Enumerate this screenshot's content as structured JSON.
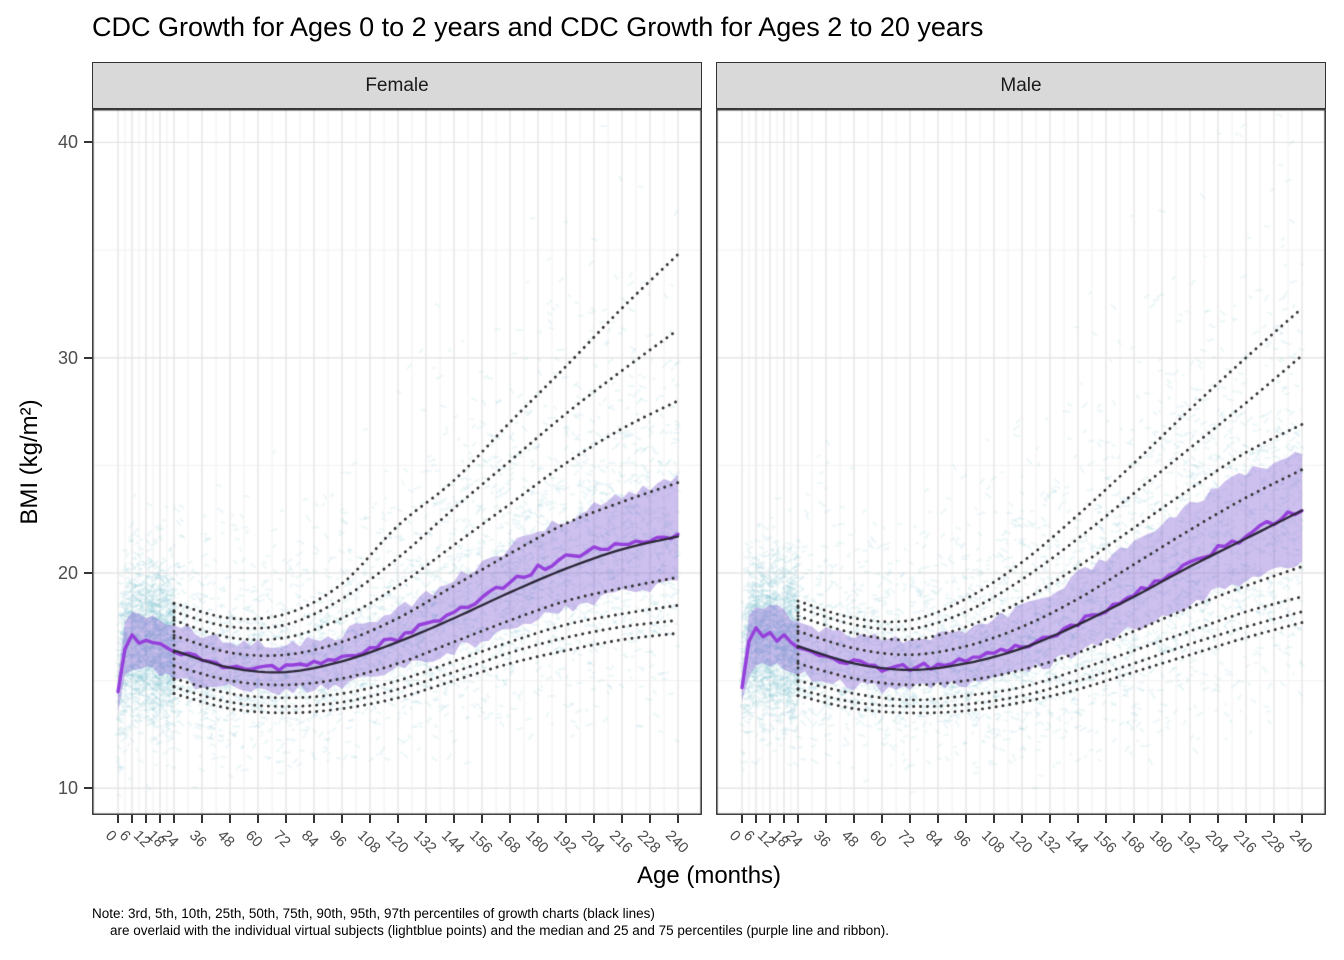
{
  "title": "CDC Growth for Ages 0 to 2 years and CDC Growth for Ages 2 to 20 years",
  "axes": {
    "x_label": "Age (months)",
    "y_label": "BMI (kg/m²)",
    "x_ticks": [
      0,
      6,
      12,
      18,
      24,
      36,
      48,
      60,
      72,
      84,
      96,
      108,
      120,
      132,
      144,
      156,
      168,
      180,
      192,
      204,
      216,
      228,
      240
    ],
    "x_minor": [
      3,
      9,
      15,
      21,
      30,
      42,
      54,
      66,
      78,
      90,
      102,
      114,
      126,
      138,
      150,
      162,
      174,
      186,
      198,
      210,
      222,
      234
    ],
    "y_ticks": [
      40,
      30,
      20,
      10
    ],
    "y_minor": [
      35,
      25,
      15
    ],
    "x_range": [
      0,
      240
    ],
    "y_range": [
      8.76,
      41.55
    ]
  },
  "note": {
    "line1": "Note: 3rd, 5th, 10th, 25th, 50th, 75th, 90th, 95th, 97th percentiles of growth charts (black lines)",
    "line2": "are overlaid with the individual virtual subjects (lightblue points) and the median and 25 and 75 percentiles (purple line and ribbon)."
  },
  "colors": {
    "cloud": "#7FC4D8",
    "ribbon_fill": "#8A6AD6",
    "ribbon_alpha": 0.42,
    "median_line": "#9640DB",
    "p50_line": "#2C2838",
    "dotted_line": "#333333",
    "grid_major": "#E5E5E5",
    "grid_minor": "#F2F2F2",
    "panel_border": "#333333",
    "strip_bg": "#D9D9D9",
    "tick_text": "#4D4D4D"
  },
  "chart_data": {
    "type": "line",
    "title": "CDC Growth for Ages 0 to 2 years and CDC Growth for Ages 2 to 20 years",
    "xlabel": "Age (months)",
    "ylabel": "BMI (kg/m²)",
    "xlim": [
      0,
      240
    ],
    "ylim": [
      8.76,
      41.55
    ],
    "grid": true,
    "legend": false,
    "percentile_labels": [
      "3rd",
      "5th",
      "10th",
      "25th",
      "50th",
      "75th",
      "90th",
      "95th",
      "97th"
    ],
    "facets": [
      {
        "label": "Female",
        "percentile_ages": [
          24,
          48,
          72,
          96,
          120,
          144,
          168,
          192,
          216,
          240
        ],
        "percentiles": {
          "p3": [
            14.4,
            13.7,
            13.5,
            13.7,
            14.2,
            15.0,
            15.8,
            16.4,
            16.9,
            17.2
          ],
          "p5": [
            14.7,
            14.0,
            13.8,
            14.0,
            14.6,
            15.4,
            16.3,
            17.0,
            17.5,
            17.8
          ],
          "p10": [
            15.1,
            14.4,
            14.2,
            14.4,
            15.0,
            15.9,
            16.8,
            17.6,
            18.1,
            18.5
          ],
          "p25": [
            15.7,
            15.0,
            14.8,
            15.1,
            15.8,
            16.8,
            17.8,
            18.7,
            19.3,
            19.8
          ],
          "p50": [
            16.4,
            15.6,
            15.4,
            15.9,
            16.8,
            17.9,
            19.1,
            20.2,
            21.1,
            21.7
          ],
          "p75": [
            17.1,
            16.3,
            16.2,
            16.8,
            17.9,
            19.4,
            20.9,
            22.3,
            23.3,
            24.2
          ],
          "p90": [
            17.8,
            17.0,
            17.0,
            17.9,
            19.4,
            21.3,
            23.2,
            25.1,
            26.7,
            28.0
          ],
          "p95": [
            18.2,
            17.5,
            17.6,
            18.8,
            20.7,
            23.0,
            25.2,
            27.4,
            29.4,
            31.3
          ],
          "p97": [
            18.6,
            17.9,
            18.1,
            19.5,
            22.2,
            24.3,
            27.0,
            29.6,
            32.3,
            34.8
          ]
        },
        "median_ages": [
          0,
          2,
          4,
          6,
          9,
          12,
          15,
          18,
          21,
          24,
          36,
          48,
          60,
          72,
          84,
          96,
          108,
          120,
          132,
          144,
          156,
          168,
          180,
          192,
          204,
          216,
          228,
          240
        ],
        "median": [
          14.5,
          16.2,
          16.8,
          17.0,
          16.9,
          16.9,
          16.7,
          16.8,
          16.6,
          16.4,
          15.9,
          15.7,
          15.6,
          15.6,
          15.8,
          16.1,
          16.5,
          17.0,
          17.6,
          18.2,
          18.9,
          19.6,
          20.2,
          20.7,
          21.1,
          21.4,
          21.6,
          21.8
        ],
        "ribbon_ages": [
          0,
          3,
          6,
          12,
          18,
          24,
          36,
          48,
          60,
          72,
          84,
          96,
          108,
          120,
          132,
          144,
          156,
          168,
          180,
          192,
          204,
          216,
          228,
          240
        ],
        "ribbon_upper": [
          15.2,
          17.6,
          18.2,
          18.1,
          17.9,
          17.7,
          17.1,
          16.9,
          16.7,
          16.7,
          16.9,
          17.2,
          17.7,
          18.3,
          19.0,
          19.7,
          20.5,
          21.2,
          21.9,
          22.5,
          23.1,
          23.6,
          24.0,
          24.4
        ],
        "ribbon_lower": [
          13.6,
          15.1,
          15.6,
          15.5,
          15.3,
          15.1,
          14.7,
          14.6,
          14.5,
          14.5,
          14.6,
          14.8,
          15.1,
          15.5,
          15.9,
          16.4,
          16.9,
          17.4,
          17.9,
          18.3,
          18.7,
          19.1,
          19.3,
          19.5
        ],
        "cloud": {
          "seed": 101,
          "n_infant": 1900,
          "n_child": 3400,
          "n_outlier": 260
        }
      },
      {
        "label": "Male",
        "percentile_ages": [
          24,
          48,
          72,
          96,
          120,
          144,
          168,
          192,
          216,
          240
        ],
        "percentiles": {
          "p3": [
            14.3,
            13.7,
            13.5,
            13.6,
            14.0,
            14.6,
            15.4,
            16.2,
            17.0,
            17.7
          ],
          "p5": [
            14.6,
            14.0,
            13.8,
            13.9,
            14.3,
            15.0,
            15.8,
            16.7,
            17.5,
            18.2
          ],
          "p10": [
            15.0,
            14.4,
            14.1,
            14.3,
            14.7,
            15.5,
            16.4,
            17.3,
            18.2,
            18.9
          ],
          "p25": [
            15.8,
            15.1,
            14.8,
            15.0,
            15.5,
            16.3,
            17.3,
            18.4,
            19.4,
            20.3
          ],
          "p50": [
            16.6,
            15.8,
            15.5,
            15.8,
            16.5,
            17.6,
            18.9,
            20.3,
            21.6,
            22.9
          ],
          "p75": [
            17.3,
            16.5,
            16.2,
            16.6,
            17.5,
            18.8,
            20.4,
            22.0,
            23.5,
            24.8
          ],
          "p90": [
            18.0,
            17.2,
            16.9,
            17.5,
            18.7,
            20.3,
            22.1,
            23.9,
            25.6,
            26.9
          ],
          "p95": [
            18.4,
            17.6,
            17.4,
            18.2,
            19.7,
            21.6,
            23.7,
            25.8,
            27.9,
            30.1
          ],
          "p97": [
            18.7,
            17.9,
            17.8,
            18.8,
            20.5,
            22.7,
            25.1,
            27.6,
            30.0,
            32.3
          ]
        },
        "median_ages": [
          0,
          2,
          4,
          6,
          9,
          12,
          15,
          18,
          21,
          24,
          36,
          48,
          60,
          72,
          84,
          96,
          108,
          120,
          132,
          144,
          156,
          168,
          180,
          192,
          204,
          216,
          228,
          240
        ],
        "median": [
          14.7,
          16.5,
          17.1,
          17.3,
          17.2,
          17.1,
          16.9,
          17.0,
          16.8,
          16.6,
          16.0,
          15.8,
          15.6,
          15.6,
          15.7,
          15.9,
          16.2,
          16.6,
          17.1,
          17.7,
          18.3,
          19.0,
          19.7,
          20.4,
          21.1,
          21.7,
          22.4,
          23.0
        ],
        "ribbon_ages": [
          0,
          3,
          6,
          12,
          18,
          24,
          36,
          48,
          60,
          72,
          84,
          96,
          108,
          120,
          132,
          144,
          156,
          168,
          180,
          192,
          204,
          216,
          228,
          240
        ],
        "ribbon_upper": [
          15.4,
          17.9,
          18.5,
          18.4,
          18.2,
          17.9,
          17.3,
          17.1,
          16.9,
          16.8,
          17.0,
          17.3,
          17.8,
          18.4,
          19.1,
          19.9,
          20.7,
          21.5,
          22.3,
          23.1,
          23.9,
          24.6,
          25.2,
          25.7
        ],
        "ribbon_lower": [
          13.8,
          15.4,
          15.9,
          15.8,
          15.6,
          15.3,
          14.9,
          14.8,
          14.6,
          14.6,
          14.7,
          14.8,
          15.1,
          15.4,
          15.8,
          16.3,
          16.8,
          17.4,
          17.9,
          18.6,
          19.1,
          19.7,
          20.1,
          20.5
        ],
        "cloud": {
          "seed": 202,
          "n_infant": 1900,
          "n_child": 3400,
          "n_outlier": 260
        }
      }
    ]
  }
}
